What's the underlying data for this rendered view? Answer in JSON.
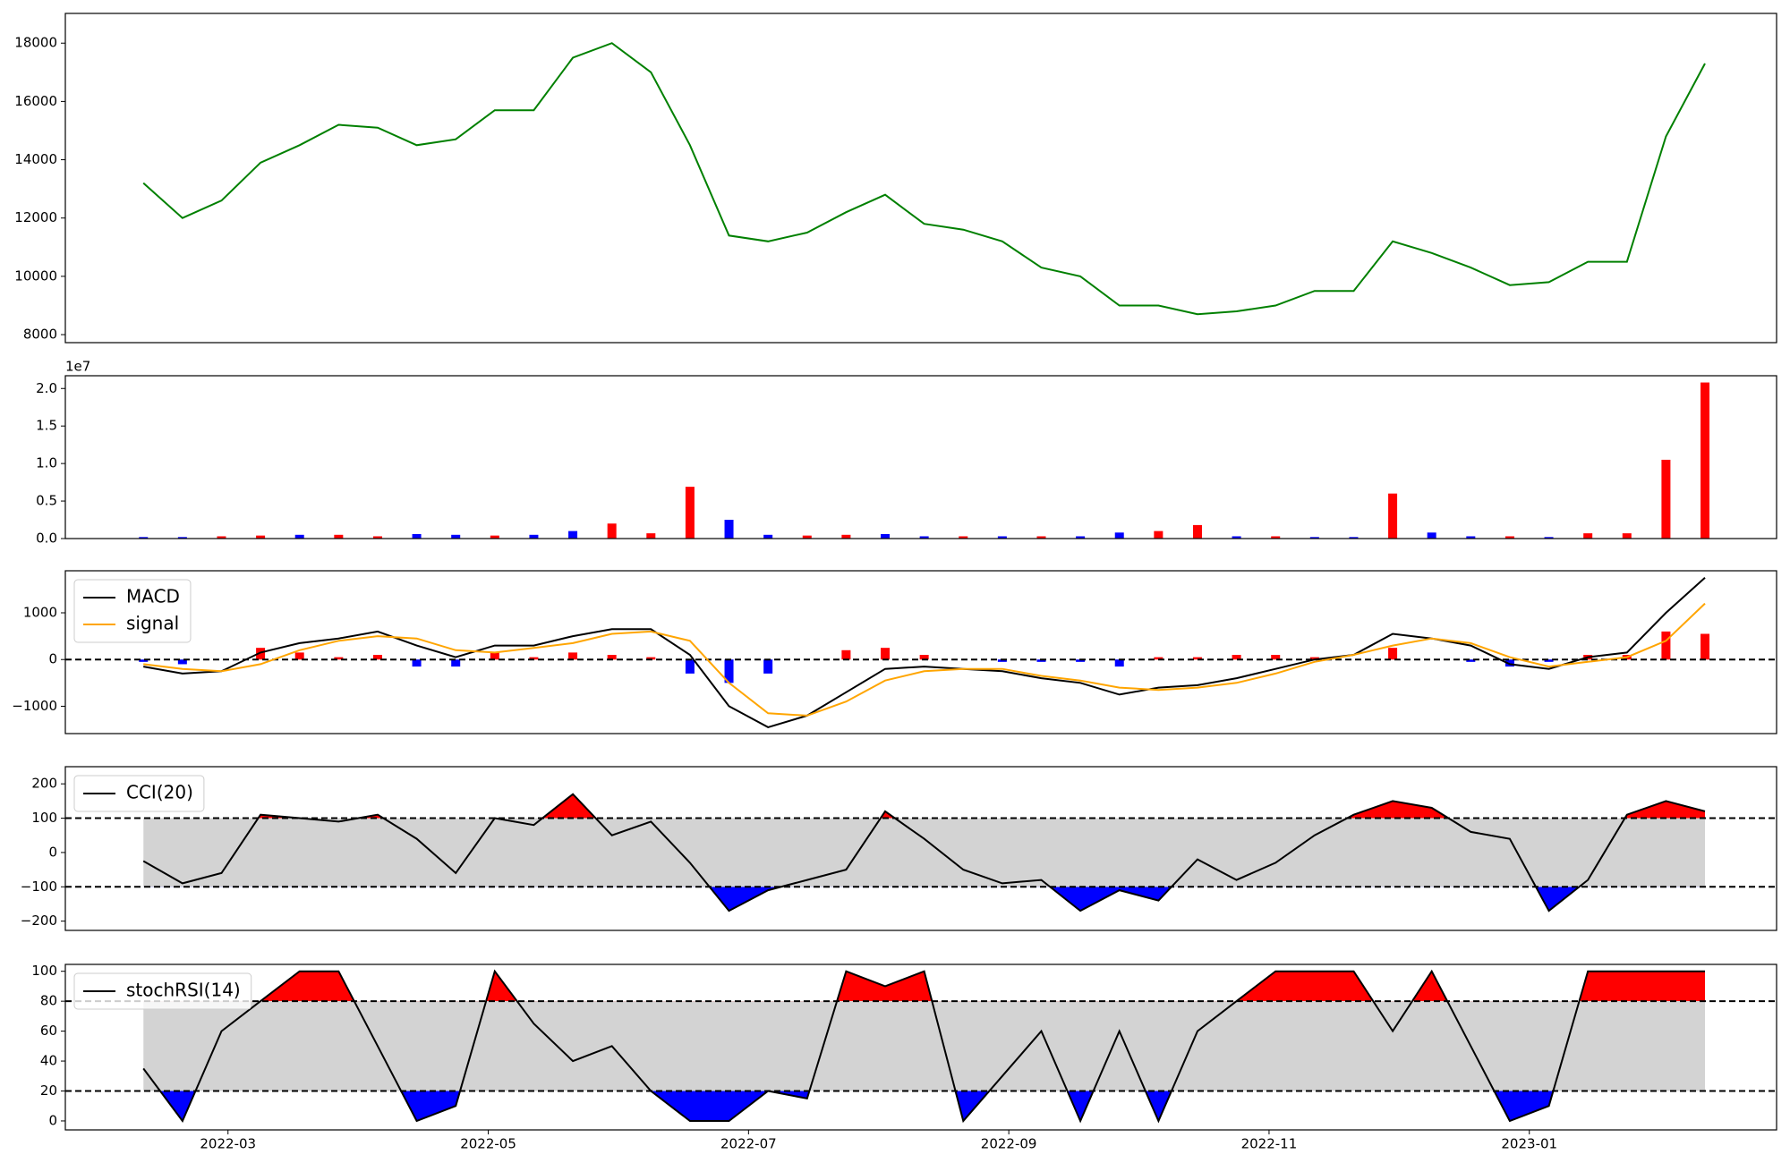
{
  "chart_data": [
    {
      "type": "line",
      "x": [
        -0.65,
        -0.35,
        -0.05,
        0.25,
        0.55,
        0.85,
        1.15,
        1.45,
        1.75,
        2.05,
        2.35,
        2.65,
        2.95,
        3.25,
        3.55,
        3.85,
        4.15,
        4.45,
        4.75,
        5.05,
        5.35,
        5.65,
        5.95,
        6.25,
        6.55,
        6.85,
        7.15,
        7.45,
        7.75,
        8.05,
        8.35,
        8.65,
        8.95,
        9.25,
        9.55,
        9.85,
        10.15,
        10.45,
        10.75,
        11.05,
        11.35
      ],
      "series": [
        {
          "color": "green",
          "values": [
            13200,
            12000,
            12600,
            13900,
            14500,
            15200,
            15100,
            14500,
            14700,
            15700,
            15700,
            17500,
            18000,
            17000,
            14500,
            11400,
            11200,
            11500,
            12200,
            12800,
            11800,
            11600,
            11200,
            10300,
            10000,
            9000,
            9000,
            8700,
            8800,
            9000,
            9500,
            9500,
            11200,
            10800,
            10300,
            9700,
            9800,
            10500,
            10500,
            14800,
            17300
          ]
        }
      ],
      "xlim": [
        -1.25,
        11.9
      ],
      "ylim": [
        7725,
        19020
      ],
      "yticks": [
        8000,
        10000,
        12000,
        14000,
        16000,
        18000
      ]
    },
    {
      "type": "bar",
      "x": [
        -0.65,
        -0.35,
        -0.05,
        0.25,
        0.55,
        0.85,
        1.15,
        1.45,
        1.75,
        2.05,
        2.35,
        2.65,
        2.95,
        3.25,
        3.55,
        3.85,
        4.15,
        4.45,
        4.75,
        5.05,
        5.35,
        5.65,
        5.95,
        6.25,
        6.55,
        6.85,
        7.15,
        7.45,
        7.75,
        8.05,
        8.35,
        8.65,
        8.95,
        9.25,
        9.55,
        9.85,
        10.15,
        10.45,
        10.75,
        11.05,
        11.35
      ],
      "values": [
        0.02,
        0.02,
        0.03,
        0.04,
        0.05,
        0.05,
        0.03,
        0.06,
        0.05,
        0.04,
        0.05,
        0.1,
        0.2,
        0.07,
        0.69,
        0.25,
        0.05,
        0.04,
        0.05,
        0.06,
        0.03,
        0.03,
        0.03,
        0.03,
        0.03,
        0.08,
        0.1,
        0.18,
        0.03,
        0.03,
        0.02,
        0.02,
        0.6,
        0.08,
        0.03,
        0.03,
        0.02,
        0.07,
        0.07,
        1.05,
        2.08
      ],
      "colors": [
        "blue",
        "blue",
        "red",
        "red",
        "blue",
        "red",
        "red",
        "blue",
        "blue",
        "red",
        "blue",
        "blue",
        "red",
        "red",
        "red",
        "blue",
        "blue",
        "red",
        "red",
        "blue",
        "blue",
        "red",
        "blue",
        "red",
        "blue",
        "blue",
        "red",
        "red",
        "blue",
        "red",
        "blue",
        "blue",
        "red",
        "blue",
        "blue",
        "red",
        "blue",
        "red",
        "red",
        "red",
        "red"
      ],
      "offset_label": "1e7",
      "xlim": [
        -1.25,
        11.9
      ],
      "ylim": [
        0,
        2.17
      ],
      "yticks": [
        {
          "value": 0,
          "label": "0.0"
        },
        {
          "value": 0.5,
          "label": "0.5"
        },
        {
          "value": 1,
          "label": "1.0"
        },
        {
          "value": 1.5,
          "label": "1.5"
        },
        {
          "value": 2,
          "label": "2.0"
        }
      ]
    },
    {
      "type": "line",
      "x": [
        -0.65,
        -0.35,
        -0.05,
        0.25,
        0.55,
        0.85,
        1.15,
        1.45,
        1.75,
        2.05,
        2.35,
        2.65,
        2.95,
        3.25,
        3.55,
        3.85,
        4.15,
        4.45,
        4.75,
        5.05,
        5.35,
        5.65,
        5.95,
        6.25,
        6.55,
        6.85,
        7.15,
        7.45,
        7.75,
        8.05,
        8.35,
        8.65,
        8.95,
        9.25,
        9.55,
        9.85,
        10.15,
        10.45,
        10.75,
        11.05,
        11.35
      ],
      "series": [
        {
          "name": "MACD",
          "color": "black",
          "values": [
            -150,
            -300,
            -250,
            150,
            350,
            450,
            600,
            300,
            50,
            300,
            300,
            500,
            650,
            650,
            100,
            -1000,
            -1450,
            -1200,
            -700,
            -200,
            -150,
            -200,
            -250,
            -400,
            -500,
            -750,
            -600,
            -550,
            -400,
            -200,
            0,
            100,
            550,
            450,
            300,
            -100,
            -200,
            50,
            150,
            1000,
            1750
          ]
        },
        {
          "name": "signal",
          "color": "orange",
          "values": [
            -100,
            -200,
            -250,
            -100,
            200,
            400,
            500,
            450,
            200,
            150,
            250,
            350,
            550,
            600,
            400,
            -500,
            -1150,
            -1200,
            -900,
            -450,
            -250,
            -200,
            -200,
            -350,
            -450,
            -600,
            -650,
            -600,
            -500,
            -300,
            -50,
            100,
            300,
            450,
            350,
            50,
            -150,
            -50,
            50,
            400,
            1200
          ]
        }
      ],
      "histogram": {
        "values": [
          -50,
          -100,
          0,
          250,
          150,
          50,
          100,
          -150,
          -150,
          150,
          50,
          150,
          100,
          50,
          -300,
          -500,
          -300,
          0,
          200,
          250,
          100,
          0,
          -50,
          -50,
          -50,
          -150,
          50,
          50,
          100,
          100,
          50,
          0,
          250,
          0,
          -50,
          -150,
          -50,
          100,
          100,
          600,
          550
        ],
        "positive_color": "red",
        "negative_color": "blue"
      },
      "hlines": [
        0
      ],
      "legend": "upper left",
      "xlim": [
        -1.25,
        11.9
      ],
      "ylim": [
        -1585,
        1900
      ],
      "yticks": [
        {
          "value": -1000,
          "label": "−1000"
        },
        0,
        1000
      ]
    },
    {
      "type": "line",
      "x": [
        -0.65,
        -0.35,
        -0.05,
        0.25,
        0.55,
        0.85,
        1.15,
        1.45,
        1.75,
        2.05,
        2.35,
        2.65,
        2.95,
        3.25,
        3.55,
        3.85,
        4.15,
        4.45,
        4.75,
        5.05,
        5.35,
        5.65,
        5.95,
        6.25,
        6.55,
        6.85,
        7.15,
        7.45,
        7.75,
        8.05,
        8.35,
        8.65,
        8.95,
        9.25,
        9.55,
        9.85,
        10.15,
        10.45,
        10.75,
        11.05,
        11.35
      ],
      "series": [
        {
          "name": "CCI(20)",
          "color": "black",
          "values": [
            -25,
            -90,
            -60,
            110,
            100,
            90,
            110,
            40,
            -60,
            100,
            80,
            170,
            50,
            90,
            -30,
            -170,
            -110,
            -80,
            -50,
            120,
            40,
            -50,
            -90,
            -80,
            -170,
            -110,
            -140,
            -20,
            -80,
            -30,
            50,
            110,
            150,
            130,
            60,
            40,
            -170,
            -80,
            110,
            150,
            120
          ]
        }
      ],
      "band": [
        -100,
        100
      ],
      "band_color": "lightgray",
      "above_color": "red",
      "below_color": "blue",
      "hlines": [
        -100,
        100
      ],
      "legend": "upper left",
      "xlim": [
        -1.25,
        11.9
      ],
      "ylim": [
        -227,
        250
      ],
      "yticks": [
        {
          "value": -200,
          "label": "−200"
        },
        {
          "value": -100,
          "label": "−100"
        },
        0,
        100,
        200
      ]
    },
    {
      "type": "line",
      "x": [
        -0.65,
        -0.35,
        -0.05,
        0.25,
        0.55,
        0.85,
        1.15,
        1.45,
        1.75,
        2.05,
        2.35,
        2.65,
        2.95,
        3.25,
        3.55,
        3.85,
        4.15,
        4.45,
        4.75,
        5.05,
        5.35,
        5.65,
        5.95,
        6.25,
        6.55,
        6.85,
        7.15,
        7.45,
        7.75,
        8.05,
        8.35,
        8.65,
        8.95,
        9.25,
        9.55,
        9.85,
        10.15,
        10.45,
        10.75,
        11.05,
        11.35
      ],
      "series": [
        {
          "name": "stochRSI(14)",
          "color": "black",
          "values": [
            35,
            0,
            60,
            80,
            100,
            100,
            50,
            0,
            10,
            100,
            65,
            40,
            50,
            20,
            0,
            0,
            20,
            15,
            100,
            90,
            100,
            0,
            30,
            60,
            0,
            60,
            0,
            60,
            80,
            100,
            100,
            100,
            60,
            100,
            50,
            0,
            10,
            100,
            100,
            100,
            100
          ]
        }
      ],
      "band": [
        20,
        80
      ],
      "band_color": "lightgray",
      "above_color": "red",
      "below_color": "blue",
      "hlines": [
        20,
        80
      ],
      "legend": "upper left",
      "xlim": [
        -1.25,
        11.9
      ],
      "ylim": [
        -6,
        104.6
      ],
      "yticks": [
        0,
        20,
        40,
        60,
        80,
        100
      ],
      "xticks": [
        {
          "value": 0,
          "label": "2022-03"
        },
        {
          "value": 2,
          "label": "2022-05"
        },
        {
          "value": 4,
          "label": "2022-07"
        },
        {
          "value": 6,
          "label": "2022-09"
        },
        {
          "value": 8,
          "label": "2022-11"
        },
        {
          "value": 10,
          "label": "2023-01"
        }
      ]
    }
  ]
}
